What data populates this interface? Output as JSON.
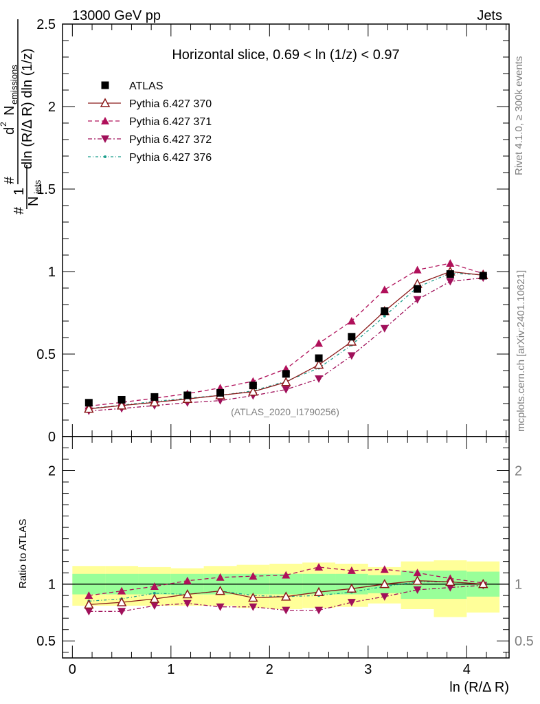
{
  "header": {
    "left": "13000 GeV pp",
    "right": "Jets"
  },
  "side_labels": {
    "rivet": "Rivet 4.1.0, ≥ 300k events",
    "mcplots": "mcplots.cern.ch [arXiv:2401.10621]"
  },
  "ylabel_main": {
    "hash1": "#",
    "one": "1",
    "n": "N",
    "jets": "jets",
    "hash2": "#",
    "d2": "d",
    "sup2": "2",
    "nemit": "N",
    "emissions": "emissions",
    "denom": "dln (R/Δ R) dln (1/z)"
  },
  "ylabel_ratio": "Ratio to ATLAS",
  "colors": {
    "atlas": "#000000",
    "p370": "#8b1a1a",
    "p371": "#b0105a",
    "p372": "#a0105a",
    "p376": "#1a9e8c",
    "band_inner": "#99ff99",
    "band_outer": "#ffff99"
  },
  "chart_data": [
    {
      "type": "scatter",
      "title": "Horizontal slice, 0.69 < ln (1/z) < 0.97",
      "watermark": "(ATLAS_2020_I1790256)",
      "xlabel": "ln (R/Δ R)",
      "ylabel": "(1/N_jets) d² N_emissions / dln (R/Δ R) dln (1/z)",
      "xlim": [
        -0.1,
        4.43
      ],
      "ylim": [
        0,
        2.5
      ],
      "yticks": [
        0,
        0.5,
        1,
        1.5,
        2,
        2.5
      ],
      "ytick_labels": [
        "0",
        "0.5",
        "1",
        "1.5",
        "2",
        "2.5"
      ],
      "x": [
        0.167,
        0.5,
        0.833,
        1.167,
        1.5,
        1.833,
        2.167,
        2.5,
        2.833,
        3.167,
        3.5,
        3.833,
        4.167
      ],
      "series": [
        {
          "name": "ATLAS",
          "style": "square",
          "values": [
            0.205,
            0.223,
            0.24,
            0.25,
            0.265,
            0.31,
            0.38,
            0.475,
            0.605,
            0.76,
            0.895,
            0.985,
            0.975
          ]
        },
        {
          "name": "Pythia 6.427 370",
          "style": "solid-open-triangle",
          "values": [
            0.168,
            0.188,
            0.207,
            0.228,
            0.25,
            0.272,
            0.33,
            0.435,
            0.575,
            0.76,
            0.925,
            1.0,
            0.978
          ]
        },
        {
          "name": "Pythia 6.427 371",
          "style": "dashed-filled-triangle",
          "values": [
            0.185,
            0.207,
            0.232,
            0.26,
            0.295,
            0.335,
            0.41,
            0.565,
            0.7,
            0.89,
            1.01,
            1.05,
            0.988
          ]
        },
        {
          "name": "Pythia 6.427 372",
          "style": "dashdot-down-triangle",
          "values": [
            0.155,
            0.17,
            0.188,
            0.205,
            0.218,
            0.248,
            0.285,
            0.35,
            0.49,
            0.655,
            0.83,
            0.94,
            0.962
          ]
        },
        {
          "name": "Pythia 6.427 376",
          "style": "dashdot-dot",
          "values": [
            0.17,
            0.19,
            0.213,
            0.232,
            0.25,
            0.277,
            0.335,
            0.415,
            0.555,
            0.73,
            0.905,
            0.99,
            0.98
          ]
        }
      ]
    },
    {
      "type": "scatter",
      "title": "",
      "xlabel": "ln (R/Δ R)",
      "ylabel": "Ratio to ATLAS",
      "xlim": [
        -0.1,
        4.43
      ],
      "ylim": [
        0.35,
        2.3
      ],
      "xticks": [
        0,
        1,
        2,
        3,
        4
      ],
      "xtick_labels": [
        "0",
        "1",
        "2",
        "3",
        "4"
      ],
      "yticks": [
        0.5,
        1,
        2
      ],
      "ytick_labels": [
        "0.5",
        "1",
        "2"
      ],
      "x": [
        0.167,
        0.5,
        0.833,
        1.167,
        1.5,
        1.833,
        2.167,
        2.5,
        2.833,
        3.167,
        3.5,
        3.833,
        4.167
      ],
      "bin_edges": [
        0,
        0.333,
        0.667,
        1.0,
        1.333,
        1.667,
        2.0,
        2.333,
        2.667,
        3.0,
        3.333,
        3.667,
        4.0,
        4.333
      ],
      "band_inner": {
        "lo": [
          0.91,
          0.91,
          0.91,
          0.91,
          0.91,
          0.91,
          0.91,
          0.91,
          0.91,
          0.92,
          0.87,
          0.87,
          0.89
        ],
        "hi": [
          1.09,
          1.09,
          1.09,
          1.09,
          1.09,
          1.09,
          1.09,
          1.09,
          1.09,
          1.08,
          1.12,
          1.12,
          1.11
        ]
      },
      "band_outer": {
        "lo": [
          0.81,
          0.81,
          0.81,
          0.81,
          0.81,
          0.79,
          0.78,
          0.79,
          0.8,
          0.83,
          0.78,
          0.71,
          0.75
        ],
        "hi": [
          1.16,
          1.16,
          1.15,
          1.14,
          1.16,
          1.17,
          1.18,
          1.19,
          1.18,
          1.15,
          1.2,
          1.21,
          1.2
        ]
      },
      "series": [
        {
          "name": "Pythia 6.427 370",
          "values": [
            0.82,
            0.84,
            0.87,
            0.91,
            0.94,
            0.88,
            0.89,
            0.93,
            0.96,
            1.0,
            1.03,
            1.02,
            1.0
          ]
        },
        {
          "name": "Pythia 6.427 371",
          "values": [
            0.9,
            0.94,
            0.98,
            1.03,
            1.06,
            1.07,
            1.08,
            1.15,
            1.12,
            1.13,
            1.1,
            1.05,
            1.01
          ]
        },
        {
          "name": "Pythia 6.427 372",
          "values": [
            0.76,
            0.76,
            0.81,
            0.83,
            0.8,
            0.8,
            0.77,
            0.77,
            0.84,
            0.89,
            0.95,
            0.97,
            0.99
          ]
        },
        {
          "name": "Pythia 6.427 376",
          "values": [
            0.85,
            0.87,
            0.92,
            0.91,
            0.94,
            0.9,
            0.89,
            0.9,
            0.93,
            0.98,
            1.02,
            1.02,
            1.0
          ]
        }
      ]
    }
  ]
}
